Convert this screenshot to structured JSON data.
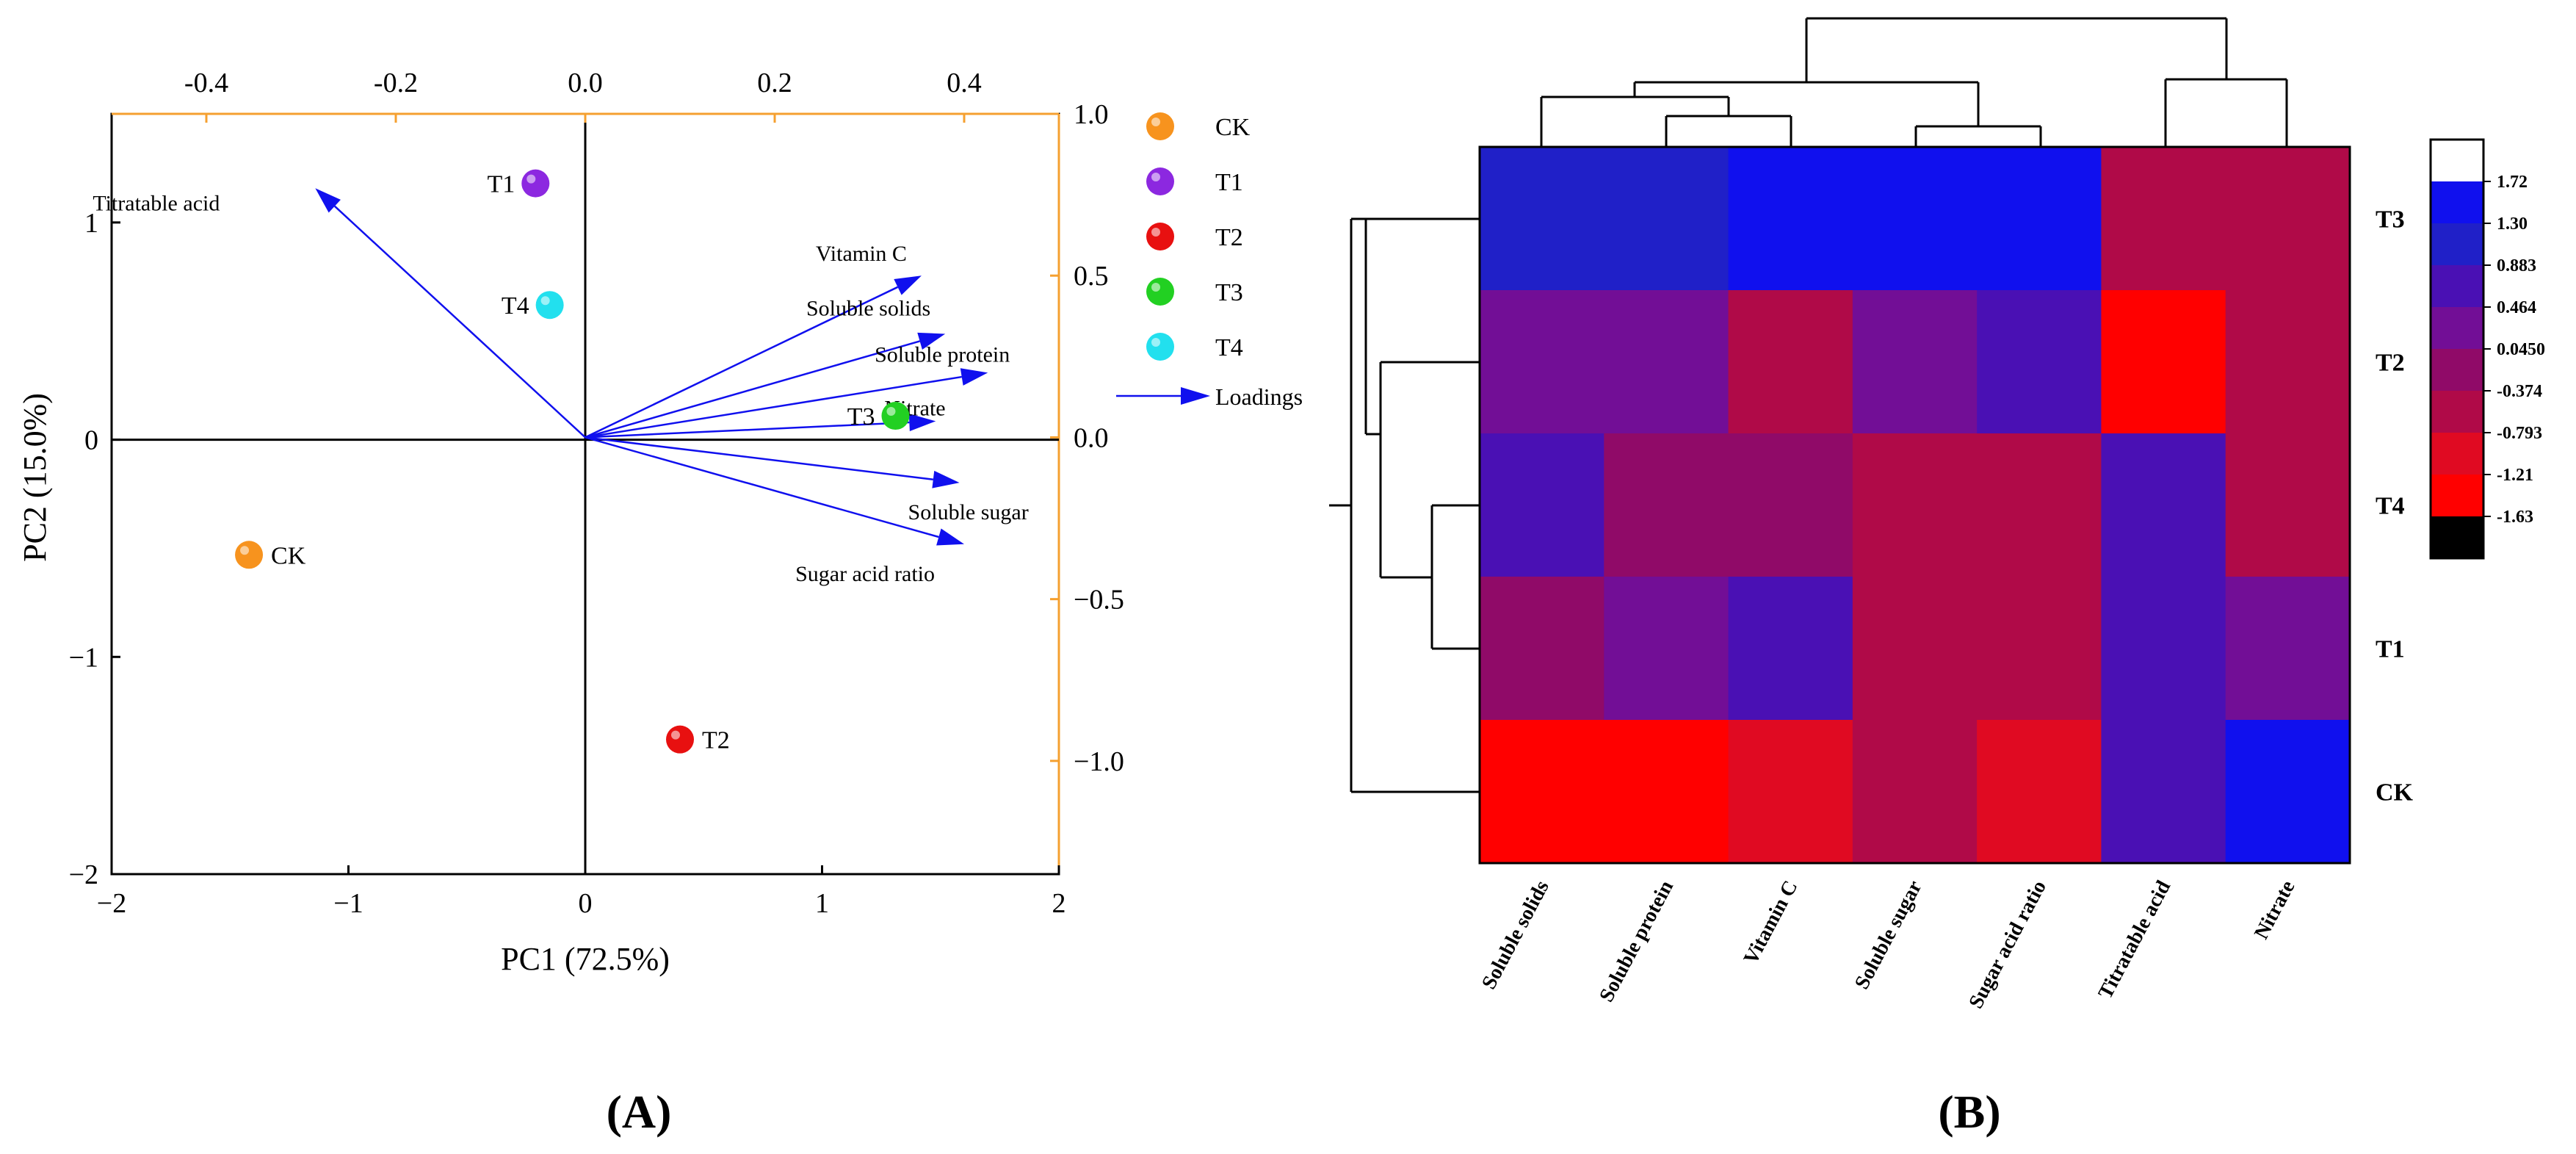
{
  "panel_labels": {
    "a": "(A)",
    "b": "(B)"
  },
  "chart_data": [
    {
      "type": "scatter",
      "subtype": "pca-biplot",
      "title": "",
      "xlabel": "PC1 (72.5%)",
      "ylabel": "PC2 (15.0%)",
      "xlim": [
        -2,
        2
      ],
      "ylim": [
        -2,
        1.5
      ],
      "x_ticks": [
        -2,
        -1,
        0,
        1,
        2
      ],
      "y_ticks": [
        -2,
        -1,
        0,
        1
      ],
      "x_tick_labels": [
        "−2",
        "−1",
        "0",
        "1",
        "2"
      ],
      "y_tick_labels": [
        "−2",
        "−1",
        "0",
        "1"
      ],
      "loading_xlim": [
        -0.5,
        0.5
      ],
      "loading_ylim": [
        -1.35,
        1.0
      ],
      "top_ticks": [
        -0.4,
        -0.2,
        0.0,
        0.2,
        0.4
      ],
      "top_tick_labels": [
        "-0.4",
        "-0.2",
        "0.0",
        "0.2",
        "0.4"
      ],
      "right_ticks": [
        1.0,
        0.5,
        0.0,
        -0.5,
        -1.0
      ],
      "right_tick_labels": [
        "1.0",
        "0.5",
        "0.0",
        "−0.5",
        "−1.0"
      ],
      "secondary_axis_color": "#f5a030",
      "grid": false,
      "legend_position": "right",
      "samples": [
        {
          "name": "CK",
          "x": -1.42,
          "y": -0.53,
          "color": "#f7931e"
        },
        {
          "name": "T1",
          "x": -0.21,
          "y": 1.18,
          "color": "#8c28e0"
        },
        {
          "name": "T2",
          "x": 0.4,
          "y": -1.38,
          "color": "#e81010"
        },
        {
          "name": "T3",
          "x": 1.31,
          "y": 0.11,
          "color": "#22d022"
        },
        {
          "name": "T4",
          "x": -0.15,
          "y": 0.62,
          "color": "#22e0ee"
        }
      ],
      "loadings": [
        {
          "name": "Titratable acid",
          "x": -0.285,
          "y": 0.77
        },
        {
          "name": "Vitamin C",
          "x": 0.355,
          "y": 0.5
        },
        {
          "name": "Soluble solids",
          "x": 0.38,
          "y": 0.32
        },
        {
          "name": "Soluble protein",
          "x": 0.425,
          "y": 0.2
        },
        {
          "name": "Nitrate",
          "x": 0.37,
          "y": 0.05
        },
        {
          "name": "Soluble sugar",
          "x": 0.395,
          "y": -0.14
        },
        {
          "name": "Sugar acid ratio",
          "x": 0.4,
          "y": -0.33
        }
      ],
      "legend": {
        "entries": [
          "CK",
          "T1",
          "T2",
          "T3",
          "T4"
        ],
        "loadings_label": "Loadings"
      },
      "arrow_color": "#1010ee"
    },
    {
      "type": "heatmap",
      "title": "",
      "columns": [
        "Soluble solids",
        "Soluble protein",
        "Vitamin C",
        "Soluble sugar",
        "Sugar acid ratio",
        "Titratable acid",
        "Nitrate"
      ],
      "rows": [
        "T3",
        "T2",
        "T4",
        "T1",
        "CK"
      ],
      "values": [
        [
          1.2,
          1.2,
          1.5,
          1.5,
          1.5,
          -0.6,
          -0.6
        ],
        [
          0.25,
          0.25,
          -0.6,
          0.3,
          0.7,
          -1.3,
          -0.6
        ],
        [
          0.7,
          -0.3,
          -0.3,
          -0.6,
          -0.6,
          0.6,
          -0.6
        ],
        [
          -0.3,
          0.3,
          0.7,
          -0.6,
          -0.6,
          0.6,
          0.3
        ],
        [
          -1.3,
          -1.3,
          -0.95,
          -0.6,
          -0.95,
          0.6,
          1.5
        ]
      ],
      "colorbar": {
        "labels": [
          "1.72",
          "1.30",
          "0.883",
          "0.464",
          "0.0450",
          "-0.374",
          "-0.793",
          "-1.21",
          "-1.63"
        ],
        "colors": [
          "#ffffff",
          "#1010ee",
          "#2020c8",
          "#4a10b4",
          "#720e96",
          "#900a68",
          "#b00a48",
          "#e00a22",
          "#ff0000",
          "#000000"
        ]
      },
      "value_colors": [
        {
          "max": -1.21,
          "color": "#ff0000"
        },
        {
          "max": -0.793,
          "color": "#e00a22"
        },
        {
          "max": -0.374,
          "color": "#b00a48"
        },
        {
          "max": 0.045,
          "color": "#900a68"
        },
        {
          "max": 0.464,
          "color": "#720e96"
        },
        {
          "max": 0.883,
          "color": "#4a10b4"
        },
        {
          "max": 1.3,
          "color": "#2020c8"
        },
        {
          "max": 1.72,
          "color": "#1010ee"
        }
      ]
    }
  ]
}
